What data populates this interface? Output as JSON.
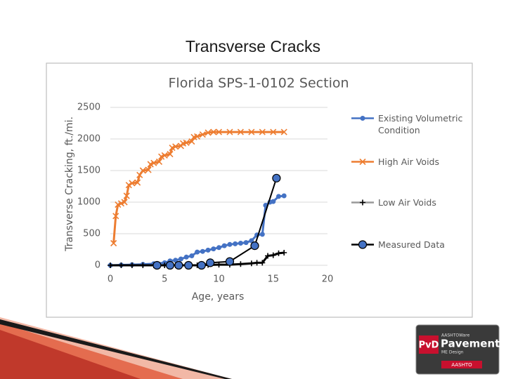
{
  "slide_title": "Transverse Cracks",
  "logo": {
    "brand": "PvD",
    "product_line": "AASHTOWare",
    "name": "Pavement",
    "subtitle": "ME Design",
    "org": "AASHTO"
  },
  "chart_data": {
    "type": "line",
    "title": "Florida SPS-1-0102 Section",
    "x_label": "Age, years",
    "y_label": "Transverse Cracking, ft./mi.",
    "xlim": [
      0,
      20
    ],
    "xticks": [
      0,
      5,
      10,
      15,
      20
    ],
    "ylim": [
      0,
      2500
    ],
    "yticks": [
      0,
      500,
      1000,
      1500,
      2000,
      2500
    ],
    "grid": true,
    "series": [
      {
        "name": "Existing Volumetric Condition",
        "color": "#4472c4",
        "marker": "circle",
        "line": true,
        "x": [
          0,
          1,
          2,
          3,
          4,
          5,
          5.5,
          6,
          6.5,
          7,
          7.5,
          8,
          8.5,
          9,
          9.5,
          10,
          10.5,
          11,
          11.5,
          12,
          12.5,
          13,
          13.5,
          14,
          14.3,
          14.7,
          15,
          15.5,
          16
        ],
        "values": [
          0,
          5,
          10,
          15,
          25,
          40,
          70,
          80,
          100,
          130,
          150,
          210,
          220,
          240,
          260,
          280,
          310,
          330,
          340,
          350,
          360,
          390,
          480,
          490,
          950,
          1000,
          1010,
          1090,
          1100
        ]
      },
      {
        "name": "High Air Voids",
        "color": "#ed7d31",
        "marker": "x",
        "line": true,
        "x": [
          0.3,
          0.5,
          0.7,
          1,
          1.3,
          1.5,
          1.7,
          2,
          2.5,
          2.7,
          3,
          3.5,
          3.7,
          4,
          4.5,
          4.7,
          5,
          5.5,
          5.7,
          6,
          6.5,
          6.7,
          7,
          7.5,
          7.7,
          8,
          8.5,
          9,
          9.5,
          10,
          11,
          12,
          13,
          14,
          15,
          16
        ],
        "values": [
          350,
          780,
          960,
          980,
          1000,
          1100,
          1270,
          1300,
          1310,
          1430,
          1500,
          1510,
          1600,
          1620,
          1640,
          1720,
          1740,
          1760,
          1860,
          1880,
          1890,
          1930,
          1940,
          1960,
          2030,
          2040,
          2070,
          2100,
          2110,
          2110,
          2110,
          2110,
          2110,
          2110,
          2110,
          2110
        ]
      },
      {
        "name": "Low Air Voids",
        "color": "#000000",
        "marker": "plus",
        "line": true,
        "x": [
          0,
          1,
          2,
          3,
          4,
          5,
          6,
          7,
          8,
          9,
          10,
          11,
          12,
          13,
          13.5,
          14,
          14.5,
          15,
          15.5,
          16
        ],
        "values": [
          0,
          0,
          0,
          0,
          0,
          0,
          0,
          0,
          0,
          5,
          10,
          10,
          20,
          30,
          40,
          40,
          150,
          160,
          190,
          200
        ]
      },
      {
        "name": "Measured Data",
        "color": "#4472c4",
        "marker": "circle-large",
        "line": true,
        "x": [
          4.3,
          5.5,
          6.3,
          7.2,
          8.4,
          9.2,
          11.0,
          13.3,
          15.3
        ],
        "values": [
          0,
          0,
          0,
          0,
          0,
          40,
          60,
          310,
          1380
        ]
      }
    ]
  }
}
